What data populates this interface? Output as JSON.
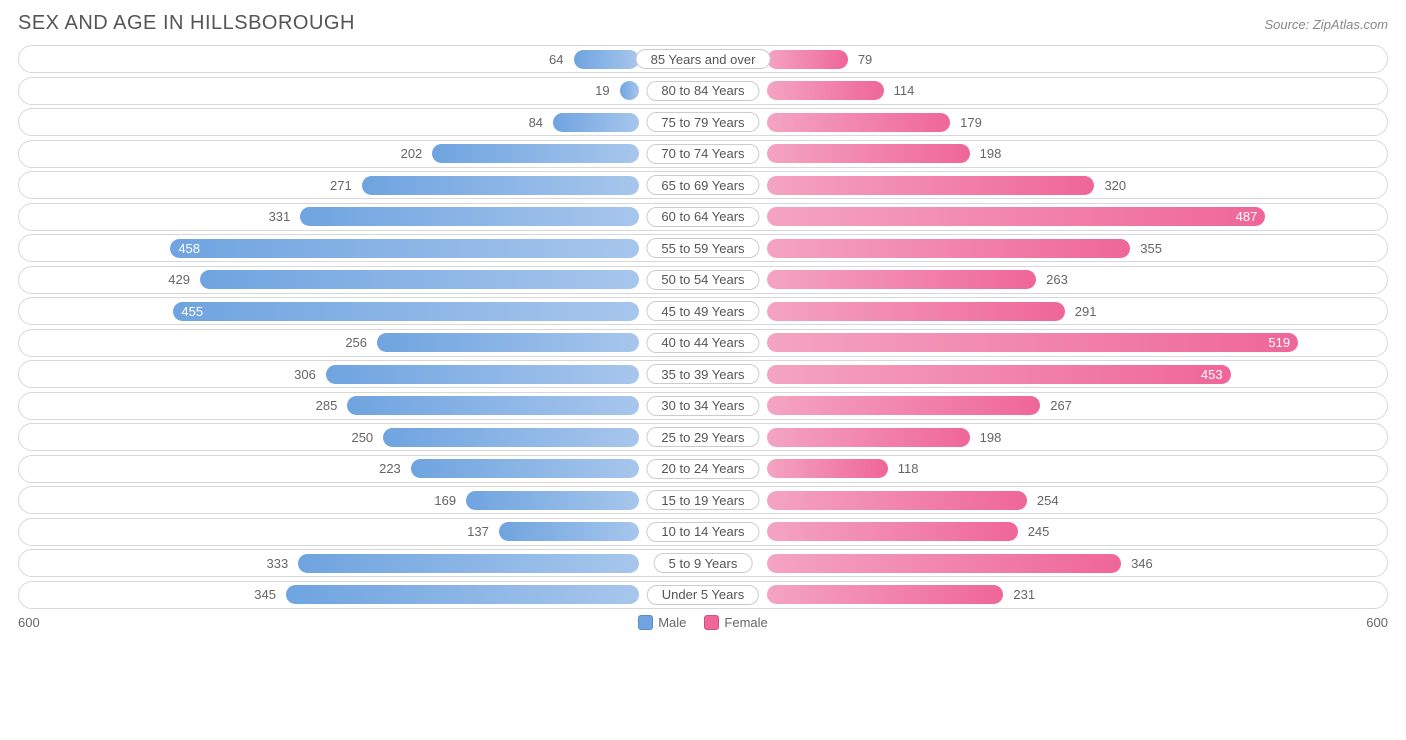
{
  "chart": {
    "type": "horizontal-diverging-bar",
    "title": "SEX AND AGE IN HILLSBOROUGH",
    "source": "Source: ZipAtlas.com",
    "axis_max": 600,
    "axis_max_label": "600",
    "male_color": "#6fa4e0",
    "male_light": "#a7c6ec",
    "female_color": "#ef6698",
    "female_light": "#f4a4c2",
    "track_border": "#d8d8d8",
    "text_color": "#666666",
    "title_color": "#555555",
    "title_fontsize": 20,
    "label_fontsize": 13,
    "background": "#ffffff",
    "center_label_width": 128,
    "legend": {
      "male": "Male",
      "female": "Female"
    },
    "categories": [
      {
        "label": "85 Years and over",
        "male": 64,
        "female": 79
      },
      {
        "label": "80 to 84 Years",
        "male": 19,
        "female": 114
      },
      {
        "label": "75 to 79 Years",
        "male": 84,
        "female": 179
      },
      {
        "label": "70 to 74 Years",
        "male": 202,
        "female": 198
      },
      {
        "label": "65 to 69 Years",
        "male": 271,
        "female": 320
      },
      {
        "label": "60 to 64 Years",
        "male": 331,
        "female": 487
      },
      {
        "label": "55 to 59 Years",
        "male": 458,
        "female": 355
      },
      {
        "label": "50 to 54 Years",
        "male": 429,
        "female": 263
      },
      {
        "label": "45 to 49 Years",
        "male": 455,
        "female": 291
      },
      {
        "label": "40 to 44 Years",
        "male": 256,
        "female": 519
      },
      {
        "label": "35 to 39 Years",
        "male": 306,
        "female": 453
      },
      {
        "label": "30 to 34 Years",
        "male": 285,
        "female": 267
      },
      {
        "label": "25 to 29 Years",
        "male": 250,
        "female": 198
      },
      {
        "label": "20 to 24 Years",
        "male": 223,
        "female": 118
      },
      {
        "label": "15 to 19 Years",
        "male": 169,
        "female": 254
      },
      {
        "label": "10 to 14 Years",
        "male": 137,
        "female": 245
      },
      {
        "label": "5 to 9 Years",
        "male": 333,
        "female": 346
      },
      {
        "label": "Under 5 Years",
        "male": 345,
        "female": 231
      }
    ]
  }
}
